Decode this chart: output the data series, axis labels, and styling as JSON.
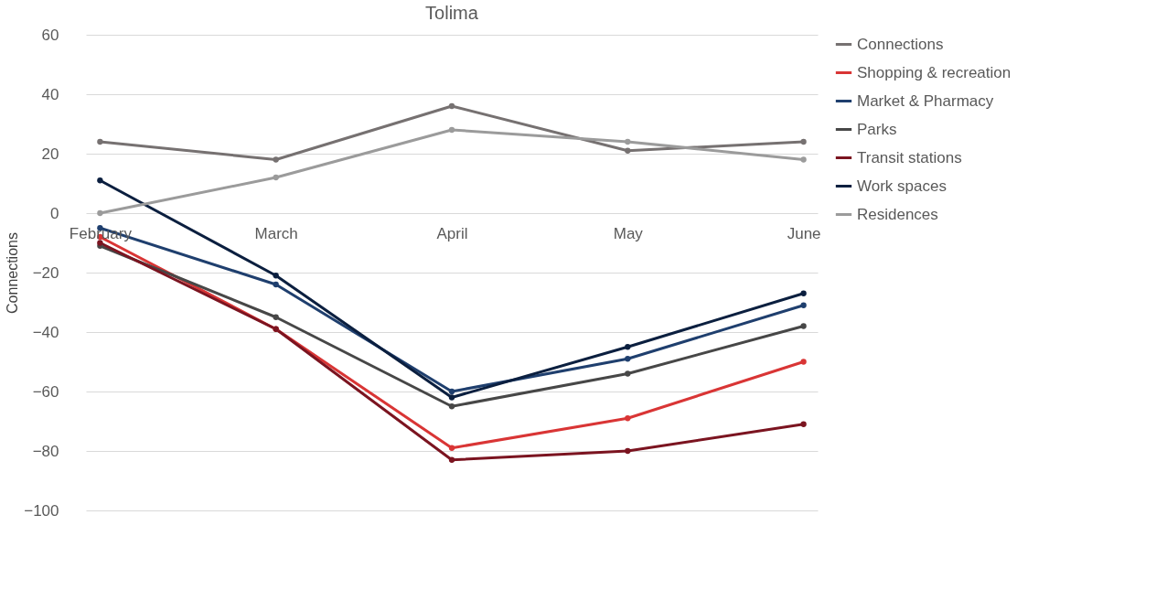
{
  "chart_data": {
    "type": "line",
    "title": "Tolima",
    "ylabel": "Connections",
    "categories": [
      "February",
      "March",
      "April",
      "May",
      "June"
    ],
    "series": [
      {
        "name": "Connections",
        "color": "#767171",
        "values": [
          24,
          18,
          36,
          21,
          24
        ]
      },
      {
        "name": "Shopping & recreation",
        "color": "#d93535",
        "values": [
          -8,
          -39,
          -79,
          -69,
          -50
        ]
      },
      {
        "name": "Market & Pharmacy",
        "color": "#1f3f6e",
        "values": [
          -5,
          -24,
          -60,
          -49,
          -31
        ]
      },
      {
        "name": "Parks",
        "color": "#474747",
        "values": [
          -11,
          -35,
          -65,
          -54,
          -38
        ]
      },
      {
        "name": "Transit stations",
        "color": "#7b1420",
        "values": [
          -10,
          -39,
          -83,
          -80,
          -71
        ]
      },
      {
        "name": "Work spaces",
        "color": "#0b1f3f",
        "values": [
          11,
          -21,
          -62,
          -45,
          -27
        ]
      },
      {
        "name": "Residences",
        "color": "#9b9b9b",
        "values": [
          0,
          12,
          28,
          24,
          18
        ]
      }
    ],
    "ylim": [
      -100,
      60
    ],
    "yticks": [
      -100,
      -80,
      -60,
      -40,
      -20,
      0,
      20,
      40,
      60
    ],
    "grid": "y",
    "legend": "right",
    "marker": "circle",
    "line_style": "solid"
  }
}
